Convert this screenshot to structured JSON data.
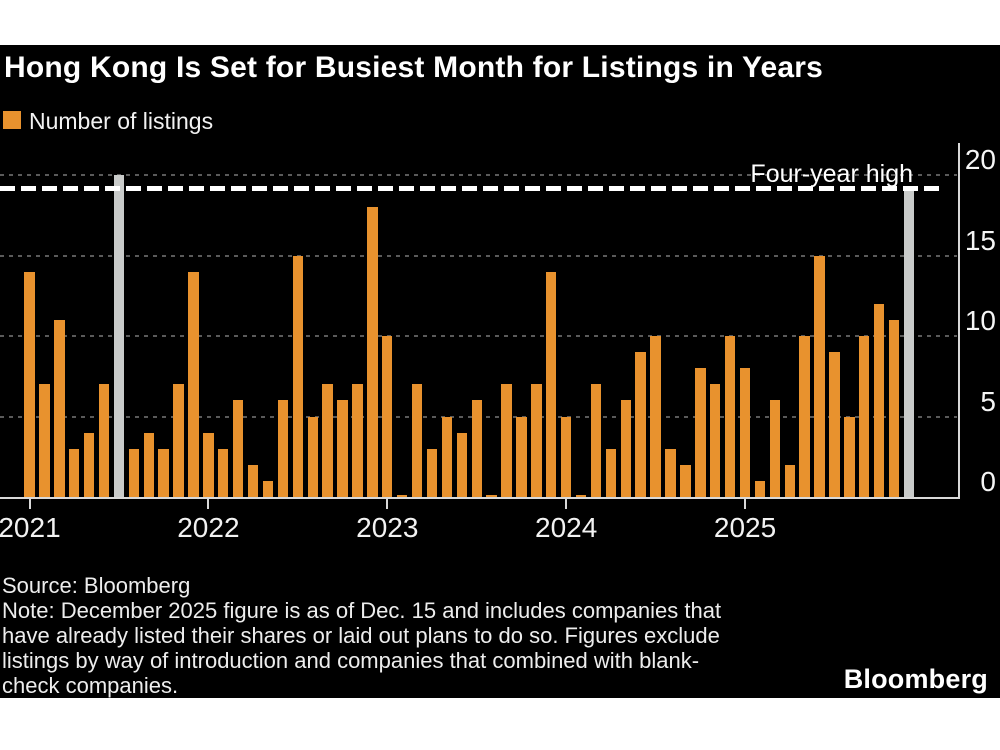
{
  "title": "Hong Kong Is Set for Busiest Month for Listings in Years",
  "legend": {
    "label": "Number of listings"
  },
  "annotation": {
    "label": "Four-year high",
    "value": 19
  },
  "y_axis": {
    "ticks": [
      20,
      15,
      10,
      5,
      0
    ],
    "gridline_ticks": [
      20,
      15,
      10,
      5
    ]
  },
  "x_axis": {
    "years": [
      "2021",
      "2022",
      "2023",
      "2024",
      "2025"
    ]
  },
  "chart_data": {
    "type": "bar",
    "title": "Hong Kong Is Set for Busiest Month for Listings in Years",
    "series_label": "Number of listings",
    "months": [
      "Jan",
      "Feb",
      "Mar",
      "Apr",
      "May",
      "Jun",
      "Jul",
      "Aug",
      "Sep",
      "Oct",
      "Nov",
      "Dec"
    ],
    "years": [
      {
        "year": "2021",
        "values": [
          14,
          7,
          11,
          3,
          4,
          7,
          20,
          3,
          4,
          3,
          7,
          14
        ]
      },
      {
        "year": "2022",
        "values": [
          4,
          3,
          6,
          2,
          1,
          6,
          15,
          5,
          7,
          6,
          7,
          18
        ]
      },
      {
        "year": "2023",
        "values": [
          10,
          0,
          7,
          3,
          5,
          4,
          6,
          0,
          7,
          5,
          7,
          14
        ]
      },
      {
        "year": "2024",
        "values": [
          5,
          0,
          7,
          3,
          6,
          9,
          10,
          3,
          2,
          8,
          7,
          10
        ]
      },
      {
        "year": "2025",
        "values": [
          8,
          1,
          6,
          2,
          10,
          15,
          9,
          5,
          10,
          12,
          11,
          19
        ]
      }
    ],
    "highlight_indices": [
      6,
      59
    ],
    "annotation_line": {
      "label": "Four-year high",
      "value": 19
    },
    "ylim": [
      0,
      20
    ],
    "grid": true,
    "legend_position": "top-left",
    "colors": {
      "bar": "#E8922E",
      "highlight_bar": "#C9CBCA",
      "gridline": "#5A5A5A",
      "axis": "#D9D9D9",
      "annotation_line": "#FFFFFF",
      "background": "#000000"
    }
  },
  "footer": {
    "source": "Source: Bloomberg",
    "note_lines": [
      "Note: December 2025 figure is as of Dec. 15 and includes companies that",
      "have already listed their shares or laid out plans to do so. Figures exclude",
      "listings by way of introduction and companies that combined with blank-",
      "check companies."
    ]
  },
  "brand": "Bloomberg"
}
